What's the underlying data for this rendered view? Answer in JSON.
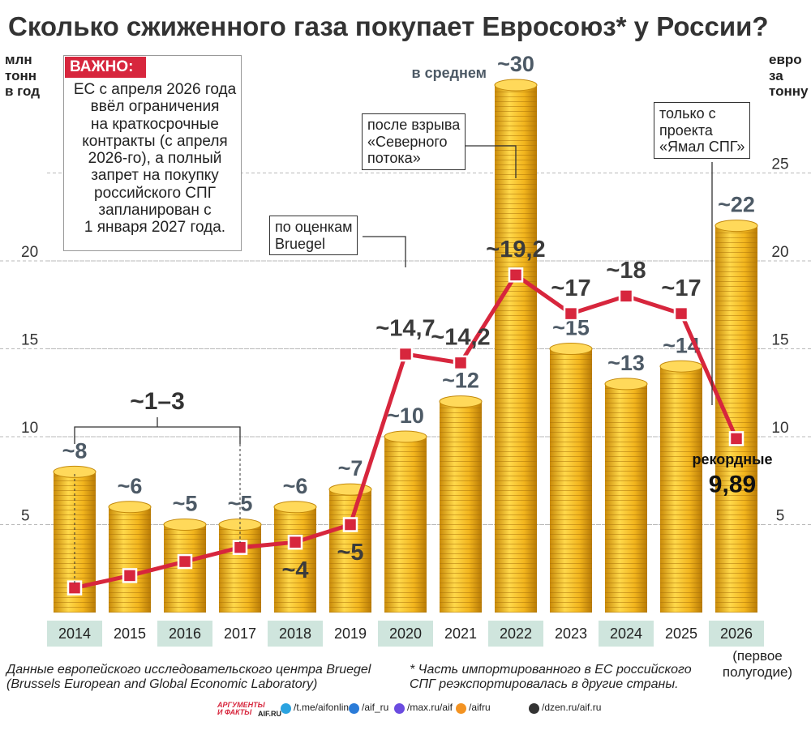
{
  "chart_data": {
    "type": "bar",
    "title": "Сколько сжиженного газа покупает Евросоюз* у России?",
    "y_label": "млн\nтонн\nв год",
    "y2_label": "евро\nза\nтонну",
    "categories": [
      "2014",
      "2015",
      "2016",
      "2017",
      "2018",
      "2019",
      "2020",
      "2021",
      "2022",
      "2023",
      "2024",
      "2025",
      "2026"
    ],
    "category_note": "(первое\nполугодие)",
    "series": [
      {
        "type": "bar",
        "color": "#f2b51d",
        "values": [
          8,
          6,
          5,
          5,
          6,
          7,
          10,
          12,
          30,
          15,
          13,
          14,
          22
        ],
        "value_labels": [
          "~8",
          "~6",
          "~5",
          "~5",
          "~6",
          "~7",
          "~10",
          "~12",
          "~30",
          "~15",
          "~13",
          "~14",
          "~22"
        ]
      },
      {
        "type": "line",
        "axis": "y2",
        "color": "#d7263d",
        "values": [
          1.4,
          2.1,
          2.9,
          3.7,
          4,
          5,
          14.7,
          14.2,
          19.2,
          17,
          18,
          17,
          9.89
        ],
        "value_labels": [
          null,
          null,
          null,
          null,
          "~4",
          "~5",
          "~14,7",
          "~14,2",
          "~19,2",
          "~17",
          "~18",
          "~17",
          "9,89"
        ]
      }
    ],
    "ylim": [
      0,
      30
    ],
    "yticks": [
      5,
      10,
      15,
      20
    ],
    "y2lim": [
      0,
      30
    ],
    "y2ticks": [
      5,
      10,
      15,
      20,
      25
    ],
    "grid": true,
    "annotations": {
      "range": "~1–3",
      "average": "в среднем",
      "record": "рекордные",
      "bruegel": "по оценкам\nBruegel",
      "nord": "после взрыва\n«Северного\nпотока»",
      "yamal": "только с\nпроекта\n«Ямал СПГ»"
    },
    "notice": {
      "title": "ВАЖНО:",
      "text": "ЕС с апреля 2026 года\nввёл ограничения\nна краткосрочные\nконтракты (с апреля\n2026-го), а полный\nзапрет на покупку\nроссийского СПГ\nзапланирован с\n1 января 2027 года."
    },
    "footer": {
      "source": "Данные европейского исследовательского центра Bruegel\n(Brussels European and Global Economic Laboratory)",
      "footnote": "* Часть импортированного в ЕС российского\nСПГ реэкспортировалась в другие страны.",
      "logo": "АРГУМЕНТЫ\nИ ФАКТЫ",
      "logo_site": "AIF.RU",
      "links": [
        "/t.me/aifonline",
        "/aif_ru",
        "/max.ru/aif",
        "/aifru",
        "/dzen.ru/aif.ru"
      ]
    }
  }
}
